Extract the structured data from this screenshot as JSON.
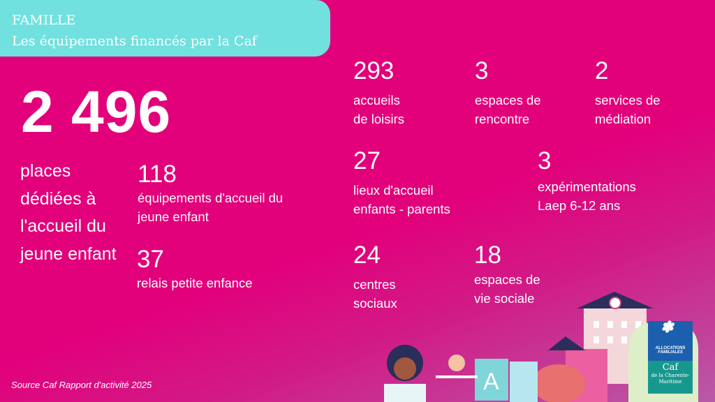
{
  "header": {
    "category": "FAMILLE",
    "title": "Les équipements financés par la Caf"
  },
  "main": {
    "big_number": "2 496",
    "big_label": "places dédiées à l'accueil du jeune enfant"
  },
  "stats": [
    {
      "value": "118",
      "label": "équipements d'accueil du\njeune enfant"
    },
    {
      "value": "37",
      "label": "relais petite enfance"
    },
    {
      "value": "293",
      "label": "accueils\nde loisirs"
    },
    {
      "value": "3",
      "label": "espaces de\nrencontre"
    },
    {
      "value": "2",
      "label": "services de\nmédiation"
    },
    {
      "value": "27",
      "label": "lieux d'accueil\nenfants - parents"
    },
    {
      "value": "3",
      "label": "expérimentations\nLaep 6-12 ans"
    },
    {
      "value": "24",
      "label": "centres\nsociaux"
    },
    {
      "value": "18",
      "label": "espaces de\nvie sociale"
    }
  ],
  "footer": {
    "source": "Source Caf Rapport d'activité 2025"
  },
  "logo": {
    "line1": "ALLOCATIONS",
    "line2": "FAMILIALES",
    "brand": "Caf",
    "sub": "de la Charente-Maritime"
  },
  "colors": {
    "background": "#e2007b",
    "banner": "#70e1df",
    "logo_blue": "#1b5fae",
    "logo_teal": "#17988f"
  }
}
